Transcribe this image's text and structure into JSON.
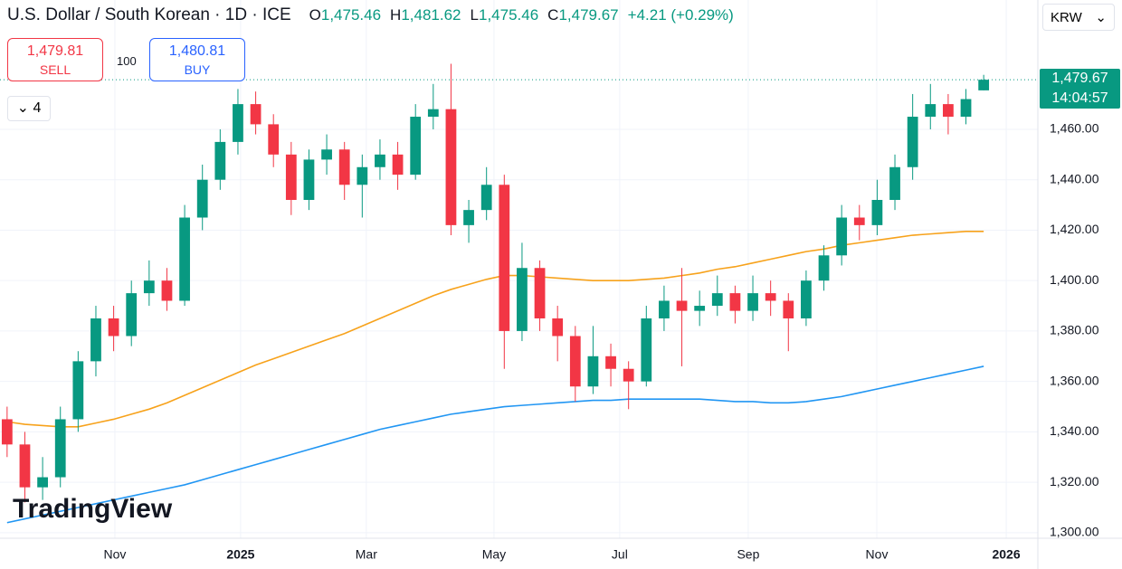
{
  "header": {
    "symbol": "U.S. Dollar / South Korean · 1D · ICE",
    "ohlc": [
      {
        "key": "O",
        "value": "1,475.46"
      },
      {
        "key": "H",
        "value": "1,481.62"
      },
      {
        "key": "L",
        "value": "1,475.46"
      },
      {
        "key": "C",
        "value": "1,479.67"
      }
    ],
    "change": "+4.21 (+0.29%)",
    "sell_price": "1,479.81",
    "sell": "SELL",
    "spread": "100",
    "buy_price": "1,480.81",
    "buy": "BUY",
    "indicators": "4",
    "currency": "KRW",
    "logo": "TradingView"
  },
  "chart_data": {
    "type": "candlestick",
    "up_color": "#089981",
    "down_color": "#f23645",
    "open": [
      1345,
      1335,
      1318,
      1322,
      1345,
      1368,
      1385,
      1378,
      1395,
      1400,
      1392,
      1425,
      1440,
      1455,
      1470,
      1462,
      1450,
      1432,
      1448,
      1452,
      1438,
      1445,
      1450,
      1442,
      1465,
      1468,
      1422,
      1428,
      1438,
      1380,
      1405,
      1385,
      1378,
      1358,
      1370,
      1365,
      1360,
      1385,
      1392,
      1388,
      1390,
      1395,
      1388,
      1395,
      1392,
      1385,
      1400,
      1410,
      1425,
      1422,
      1432,
      1445,
      1465,
      1470,
      1465,
      1475.46
    ],
    "high": [
      1350,
      1340,
      1330,
      1350,
      1372,
      1390,
      1390,
      1400,
      1408,
      1405,
      1430,
      1446,
      1460,
      1476,
      1475,
      1466,
      1455,
      1452,
      1458,
      1455,
      1450,
      1456,
      1455,
      1470,
      1478,
      1486,
      1432,
      1445,
      1442,
      1415,
      1408,
      1390,
      1382,
      1382,
      1375,
      1368,
      1390,
      1398,
      1405,
      1396,
      1402,
      1398,
      1402,
      1400,
      1395,
      1404,
      1414,
      1430,
      1430,
      1440,
      1450,
      1474,
      1478,
      1474,
      1476,
      1481.62
    ],
    "low": [
      1330,
      1312,
      1313,
      1318,
      1340,
      1362,
      1372,
      1374,
      1390,
      1388,
      1390,
      1420,
      1436,
      1450,
      1458,
      1445,
      1426,
      1428,
      1442,
      1432,
      1425,
      1440,
      1436,
      1440,
      1460,
      1418,
      1415,
      1424,
      1365,
      1376,
      1380,
      1368,
      1352,
      1355,
      1358,
      1349,
      1358,
      1380,
      1366,
      1382,
      1386,
      1383,
      1384,
      1386,
      1372,
      1382,
      1396,
      1406,
      1416,
      1418,
      1428,
      1440,
      1460,
      1458,
      1462,
      1475.46
    ],
    "close": [
      1335,
      1318,
      1322,
      1345,
      1368,
      1385,
      1378,
      1395,
      1400,
      1392,
      1425,
      1440,
      1455,
      1470,
      1462,
      1450,
      1432,
      1448,
      1452,
      1438,
      1445,
      1450,
      1442,
      1465,
      1468,
      1422,
      1428,
      1438,
      1380,
      1405,
      1385,
      1378,
      1358,
      1370,
      1365,
      1360,
      1385,
      1392,
      1388,
      1390,
      1395,
      1388,
      1395,
      1392,
      1385,
      1400,
      1410,
      1425,
      1422,
      1432,
      1445,
      1465,
      1470,
      1465,
      1472,
      1479.67
    ],
    "lines": [
      {
        "color": "#f7a21b",
        "values": [
          1344,
          1343,
          1342.5,
          1342,
          1342,
          1343.5,
          1345,
          1347,
          1349,
          1351.5,
          1354.5,
          1357.5,
          1360.5,
          1363.5,
          1366.5,
          1369,
          1371.5,
          1374,
          1376.5,
          1379,
          1382,
          1385,
          1388,
          1391,
          1394,
          1396.5,
          1398.5,
          1400.5,
          1402,
          1402,
          1401.5,
          1401,
          1400.5,
          1400,
          1400,
          1400,
          1400.5,
          1401,
          1402,
          1403,
          1404.5,
          1405.5,
          1407,
          1408.5,
          1410,
          1411.5,
          1412.5,
          1414,
          1415,
          1416,
          1417,
          1418,
          1418.5,
          1419,
          1419.5,
          1419.5
        ]
      },
      {
        "color": "#2196f3",
        "values": [
          1304,
          1305.5,
          1307,
          1308.5,
          1310,
          1311.5,
          1313,
          1314.5,
          1316,
          1317.5,
          1319,
          1321,
          1323,
          1325,
          1327,
          1329,
          1331,
          1333,
          1335,
          1337,
          1339,
          1341,
          1342.5,
          1344,
          1345.5,
          1347,
          1348,
          1349,
          1350,
          1350.5,
          1351,
          1351.5,
          1352,
          1352.5,
          1352.5,
          1353,
          1353,
          1353,
          1353,
          1353,
          1352.5,
          1352,
          1352,
          1351.5,
          1351.5,
          1352,
          1353,
          1354,
          1355.5,
          1357,
          1358.5,
          1360,
          1361.5,
          1363,
          1364.5,
          1366
        ]
      }
    ],
    "last_price": 1479.67,
    "last_price_label": "1,479.67",
    "countdown": "14:04:57",
    "xlim": [
      -0.4,
      58.05
    ],
    "xticks": [
      {
        "value": 6.07,
        "label": "Nov"
      },
      {
        "value": 13.15,
        "label": "2025"
      },
      {
        "value": 20.23,
        "label": "Mar"
      },
      {
        "value": 27.42,
        "label": "May"
      },
      {
        "value": 34.5,
        "label": "Jul"
      },
      {
        "value": 41.74,
        "label": "Sep"
      },
      {
        "value": 48.98,
        "label": "Nov"
      },
      {
        "value": 56.27,
        "label": "2026"
      }
    ],
    "ylim": [
      1297.8,
      1511.3
    ],
    "yticks": [
      {
        "value": 1300,
        "label": "1,300.00"
      },
      {
        "value": 1320,
        "label": "1,320.00"
      },
      {
        "value": 1340,
        "label": "1,340.00"
      },
      {
        "value": 1360,
        "label": "1,360.00"
      },
      {
        "value": 1380,
        "label": "1,380.00"
      },
      {
        "value": 1400,
        "label": "1,400.00"
      },
      {
        "value": 1420,
        "label": "1,420.00"
      },
      {
        "value": 1440,
        "label": "1,440.00"
      },
      {
        "value": 1460,
        "label": "1,460.00"
      }
    ],
    "grid": true
  }
}
